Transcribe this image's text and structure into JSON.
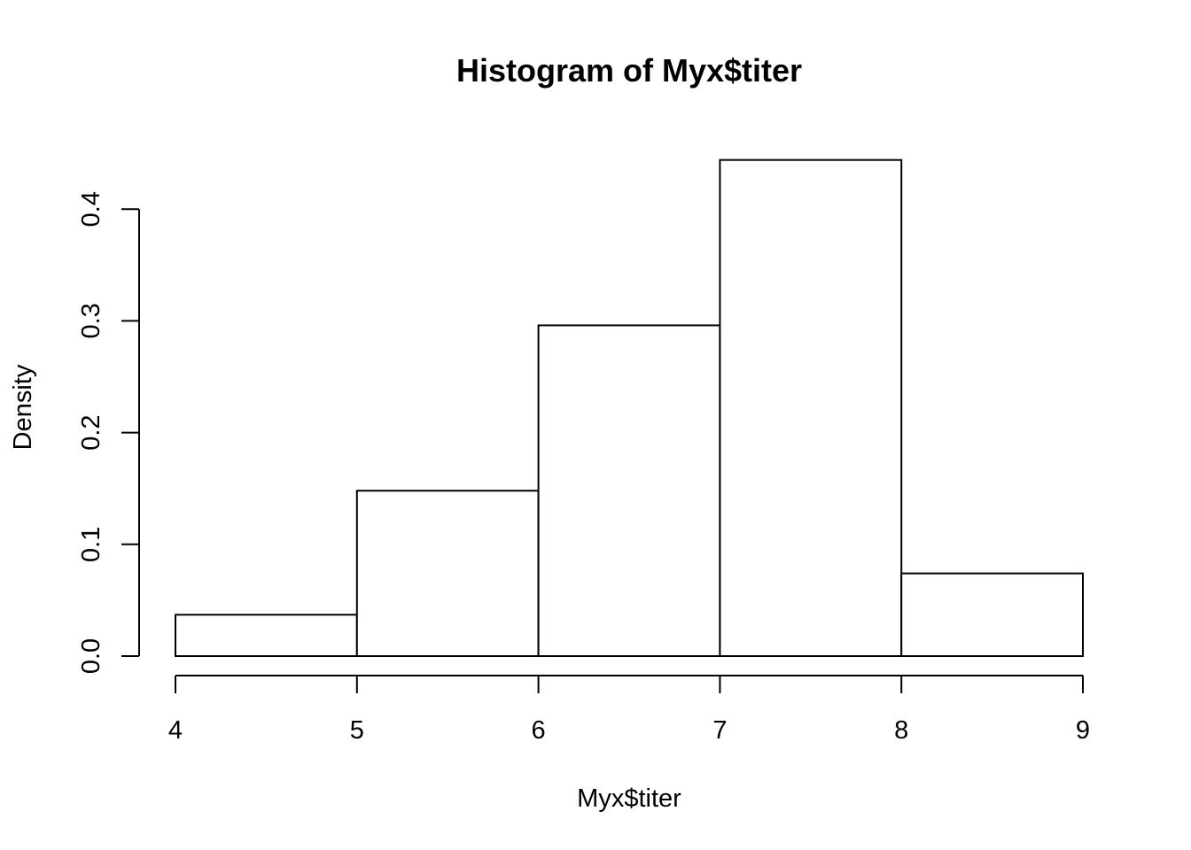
{
  "chart_data": {
    "type": "bar",
    "title": "Histogram of Myx$titer",
    "xlabel": "Myx$titer",
    "ylabel": "Density",
    "bin_edges": [
      4,
      5,
      6,
      7,
      8,
      9
    ],
    "values": [
      0.037,
      0.148,
      0.296,
      0.444,
      0.074
    ],
    "xlim": [
      4,
      9
    ],
    "ylim": [
      0,
      0.4
    ],
    "x_ticks": [
      4,
      5,
      6,
      7,
      8,
      9
    ],
    "x_tick_labels": [
      "4",
      "5",
      "6",
      "7",
      "8",
      "9"
    ],
    "y_ticks": [
      0,
      0.1,
      0.2,
      0.3,
      0.4
    ],
    "y_tick_labels": [
      "0.0",
      "0.1",
      "0.2",
      "0.3",
      "0.4"
    ],
    "grid": false,
    "legend": "none",
    "colors": {
      "bar_fill": "#ffffff",
      "bar_stroke": "#000000",
      "axis": "#000000",
      "background": "#ffffff"
    }
  }
}
